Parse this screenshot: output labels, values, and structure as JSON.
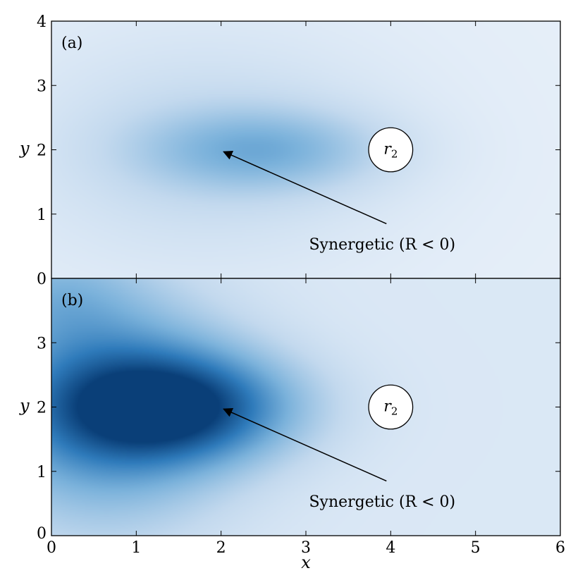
{
  "chart_data": [
    {
      "type": "heatmap",
      "panel_label": "(a)",
      "xlabel": "",
      "ylabel": "y",
      "xlim": [
        0,
        6
      ],
      "ylim": [
        0,
        4
      ],
      "x_ticks": [
        0,
        1,
        2,
        3,
        4,
        5,
        6
      ],
      "y_ticks": [
        0,
        1,
        2,
        3,
        4
      ],
      "y_tick_labels": [
        "0",
        "1",
        "2",
        "3",
        "4"
      ],
      "colormap": [
        "#f0f5fc",
        "#c3d9ee",
        "#7bb2db",
        "#2f7bbb",
        "#0a3f78"
      ],
      "background_level": 0.06,
      "blobs": [
        {
          "x": 2.5,
          "y": 2.0,
          "sx": 1.0,
          "sy": 0.45,
          "amp": 0.32
        },
        {
          "x": 1.8,
          "y": 2.0,
          "sx": 1.6,
          "sy": 1.3,
          "amp": 0.18
        }
      ],
      "circle": {
        "label_main": "r",
        "label_sub": "2",
        "x": 4.0,
        "y": 2.0,
        "r": 0.26
      },
      "annotation": {
        "text": "Synergetic (R < 0)",
        "text_x": 3.9,
        "text_y": 0.45,
        "arrow_from": [
          3.95,
          0.85
        ],
        "arrow_to": [
          2.03,
          1.97
        ]
      }
    },
    {
      "type": "heatmap",
      "panel_label": "(b)",
      "xlabel": "x",
      "ylabel": "y",
      "xlim": [
        0,
        6
      ],
      "ylim": [
        0,
        4
      ],
      "x_ticks": [
        0,
        1,
        2,
        3,
        4,
        5,
        6
      ],
      "x_tick_labels": [
        "0",
        "1",
        "2",
        "3",
        "4",
        "5",
        "6"
      ],
      "y_ticks": [
        0,
        1,
        2,
        3,
        4
      ],
      "y_tick_labels": [
        "0",
        "1",
        "2",
        "3",
        ""
      ],
      "colormap": [
        "#f0f5fc",
        "#c3d9ee",
        "#7bb2db",
        "#2f7bbb",
        "#0a3f78"
      ],
      "background_level": 0.12,
      "blobs": [
        {
          "x": 1.5,
          "y": 2.0,
          "sx": 1.0,
          "sy": 0.6,
          "amp": 0.7
        },
        {
          "x": 0.6,
          "y": 2.0,
          "sx": 1.1,
          "sy": 1.3,
          "amp": 0.55
        },
        {
          "x": 0.0,
          "y": 3.8,
          "sx": 0.7,
          "sy": 0.6,
          "amp": 0.2
        }
      ],
      "circle": {
        "label_main": "r",
        "label_sub": "2",
        "x": 4.0,
        "y": 2.0,
        "r": 0.26
      },
      "annotation": {
        "text": "Synergetic (R < 0)",
        "text_x": 3.9,
        "text_y": 0.45,
        "arrow_from": [
          3.95,
          0.85
        ],
        "arrow_to": [
          2.03,
          1.97
        ]
      }
    }
  ]
}
